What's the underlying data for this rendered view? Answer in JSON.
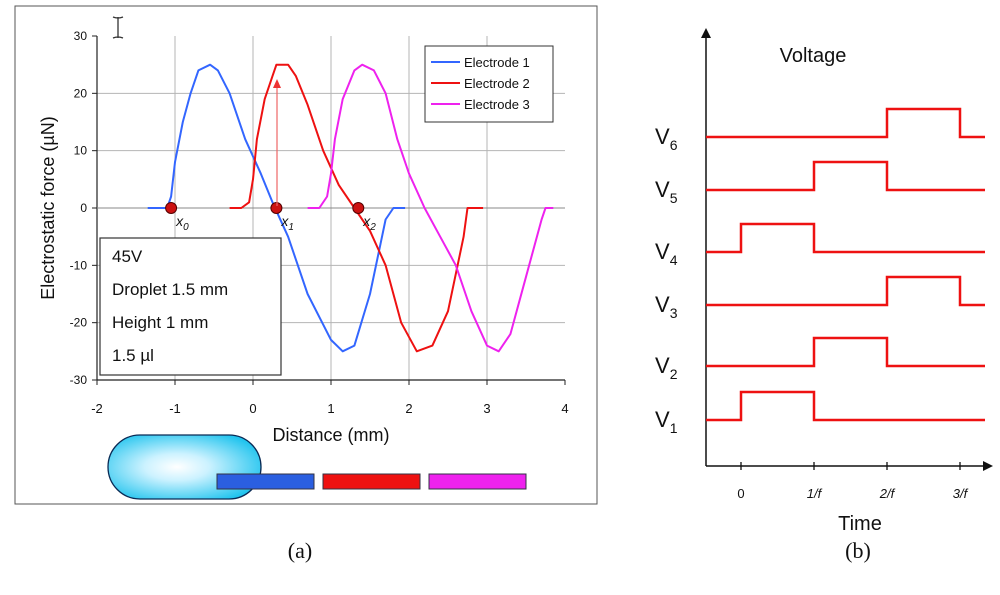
{
  "chart_data": [
    {
      "panel": "a",
      "type": "line",
      "xlabel": "Distance (mm)",
      "ylabel": "Electrostatic force (µN)",
      "xlim": [
        -2,
        4
      ],
      "ylim": [
        -30,
        30
      ],
      "xticks": [
        "-2",
        "-1",
        "0",
        "1",
        "2",
        "3",
        "4"
      ],
      "yticks": [
        "30",
        "20",
        "10",
        "0",
        "-10",
        "-20",
        "-30"
      ],
      "grid": true,
      "legend_position": "top-right",
      "series": [
        {
          "name": "Electrode 1",
          "color": "#3366ff",
          "x": [
            -1.35,
            -1.2,
            -1.1,
            -1.05,
            -1.0,
            -0.9,
            -0.8,
            -0.7,
            -0.55,
            -0.45,
            -0.3,
            -0.1,
            0.1,
            0.25,
            0.45,
            0.7,
            1.0,
            1.15,
            1.3,
            1.5,
            1.7,
            1.8,
            1.85,
            1.9,
            1.95
          ],
          "y": [
            0,
            0,
            0,
            2,
            8,
            15,
            20,
            24,
            25,
            24,
            20,
            12,
            6,
            1,
            -5,
            -15,
            -23,
            -25,
            -24,
            -15,
            -2,
            0,
            0,
            0,
            0
          ]
        },
        {
          "name": "Electrode 2",
          "color": "#ee1111",
          "x": [
            -0.3,
            -0.15,
            -0.05,
            0.0,
            0.05,
            0.15,
            0.25,
            0.3,
            0.45,
            0.55,
            0.7,
            0.9,
            1.1,
            1.3,
            1.5,
            1.7,
            1.9,
            2.1,
            2.3,
            2.5,
            2.7,
            2.75,
            2.8,
            2.9,
            2.95
          ],
          "y": [
            0,
            0,
            1,
            5,
            12,
            19,
            23,
            25,
            25,
            23,
            18,
            10,
            4,
            0,
            -4,
            -10,
            -20,
            -25,
            -24,
            -18,
            -5,
            0,
            0,
            0,
            0
          ]
        },
        {
          "name": "Electrode 3",
          "color": "#ee22ee",
          "x": [
            0.7,
            0.85,
            0.95,
            1.0,
            1.05,
            1.15,
            1.3,
            1.4,
            1.55,
            1.7,
            1.85,
            2.0,
            2.2,
            2.4,
            2.6,
            2.8,
            3.0,
            3.15,
            3.3,
            3.5,
            3.7,
            3.75,
            3.8,
            3.85
          ],
          "y": [
            0,
            0,
            2,
            6,
            12,
            19,
            24,
            25,
            24,
            20,
            12,
            6,
            0,
            -5,
            -10,
            -18,
            -24,
            -25,
            -22,
            -12,
            -2,
            0,
            0,
            0
          ]
        }
      ],
      "markers": [
        {
          "x": -1.05,
          "y": 0,
          "label_base": "x",
          "label_sub": "0"
        },
        {
          "x": 0.3,
          "y": 0,
          "label_base": "x",
          "label_sub": "1"
        },
        {
          "x": 1.35,
          "y": 0,
          "label_base": "x",
          "label_sub": "2"
        }
      ],
      "info_box": [
        "45V",
        "Droplet 1.5 mm",
        "Height 1 mm",
        "1.5 µl"
      ],
      "electrode_colors": [
        "#2b5fe0",
        "#ee1111",
        "#ee22ee"
      ],
      "caption": "(a)"
    },
    {
      "panel": "b",
      "type": "line",
      "title": "Voltage",
      "xlabel": "Time",
      "xticks": [
        "0",
        "1/f",
        "2/f",
        "3/f"
      ],
      "line_color": "#ee1111",
      "channels": [
        {
          "label_base": "V",
          "label_sub": "6",
          "high": [
            [
              2,
              3
            ]
          ]
        },
        {
          "label_base": "V",
          "label_sub": "5",
          "high": [
            [
              1,
              2
            ]
          ]
        },
        {
          "label_base": "V",
          "label_sub": "4",
          "high": [
            [
              0,
              1
            ]
          ]
        },
        {
          "label_base": "V",
          "label_sub": "3",
          "high": [
            [
              2,
              3
            ]
          ]
        },
        {
          "label_base": "V",
          "label_sub": "2",
          "high": [
            [
              1,
              2
            ]
          ]
        },
        {
          "label_base": "V",
          "label_sub": "1",
          "high": [
            [
              0,
              1
            ]
          ]
        }
      ],
      "caption": "(b)"
    }
  ]
}
